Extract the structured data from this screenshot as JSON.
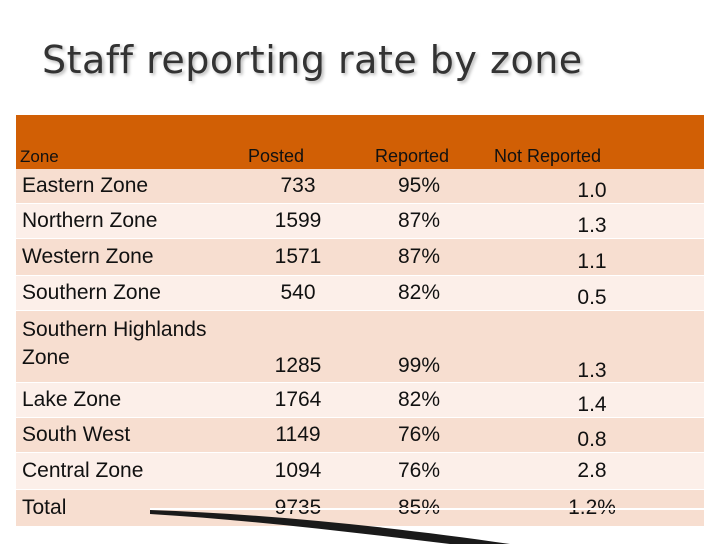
{
  "title": "Staff reporting rate by zone",
  "headers": {
    "zone": "Zone",
    "posted": "Posted",
    "reported": "Reported",
    "not_reported": "Not Reported"
  },
  "rows": [
    {
      "zone": "Eastern Zone",
      "posted": "733",
      "reported": "95%",
      "not_reported": "1.0"
    },
    {
      "zone": "Northern Zone",
      "posted": "1599",
      "reported": "87%",
      "not_reported": "1.3"
    },
    {
      "zone": "Western Zone",
      "posted": "1571",
      "reported": "87%",
      "not_reported": "1.1"
    },
    {
      "zone": "Southern Zone",
      "posted": "540",
      "reported": "82%",
      "not_reported": "0.5"
    },
    {
      "zone": "Southern Highlands Zone",
      "posted": "1285",
      "reported": "99%",
      "not_reported": "1.3"
    },
    {
      "zone": "Lake Zone",
      "posted": "1764",
      "reported": "82%",
      "not_reported": "1.4"
    },
    {
      "zone": "South West",
      "posted": "1149",
      "reported": "76%",
      "not_reported": "0.8"
    },
    {
      "zone": "Central Zone",
      "posted": "1094",
      "reported": "76%",
      "not_reported": "2.8"
    }
  ],
  "total": {
    "zone": "Total",
    "posted": "9735",
    "reported": "85%",
    "not_reported": "1.2%"
  },
  "colors": {
    "header_bg": "#d15f05",
    "row_odd": "#f7ded0",
    "row_even": "#fcefe9",
    "title": "#333333"
  }
}
